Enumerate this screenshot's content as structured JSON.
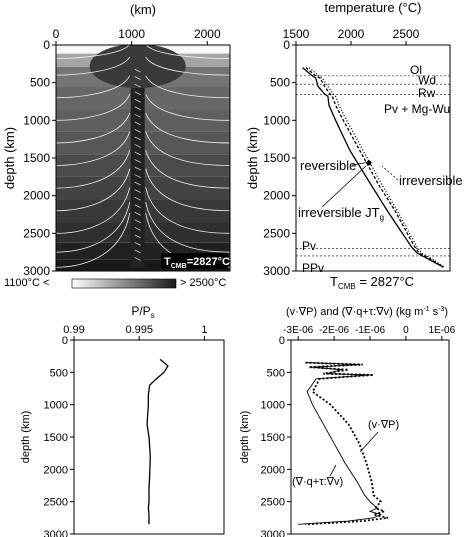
{
  "chart_data": [
    {
      "id": "a",
      "type": "heatmap",
      "title": "",
      "xlabel": "(km)",
      "ylabel": "depth (km)",
      "xlim": [
        0,
        2300
      ],
      "ylim": [
        3000,
        0
      ],
      "xticks": [
        0,
        1000,
        2000
      ],
      "yticks": [
        0,
        500,
        1000,
        1500,
        2000,
        2500,
        3000
      ],
      "colorbar": {
        "low_label": "1100°C <",
        "high_label": "> 2500°C",
        "min": 1100,
        "max": 2500,
        "colors": [
          "#ffffff",
          "#1a1a1a"
        ]
      },
      "annotation": "T",
      "annotation_sub": "CMB",
      "annotation_value": "=2827°C",
      "plume_center_km": 1080,
      "layers": [
        {
          "depth": 50,
          "temperature": 1150
        },
        {
          "depth": 180,
          "temperature": 1650
        },
        {
          "depth": 400,
          "temperature": 1950
        },
        {
          "depth": 700,
          "temperature": 2030
        },
        {
          "depth": 1000,
          "temperature": 2080
        },
        {
          "depth": 1300,
          "temperature": 2130
        },
        {
          "depth": 1600,
          "temperature": 2200
        },
        {
          "depth": 1900,
          "temperature": 2250
        },
        {
          "depth": 2200,
          "temperature": 2310
        },
        {
          "depth": 2500,
          "temperature": 2370
        },
        {
          "depth": 2750,
          "temperature": 2450
        },
        {
          "depth": 2950,
          "temperature": 2600
        }
      ]
    },
    {
      "id": "b",
      "type": "line",
      "title": "",
      "xlabel": "temperature (°C)",
      "ylabel": "depth (km)",
      "xlim": [
        1500,
        2900
      ],
      "ylim": [
        3000,
        0
      ],
      "xticks": [
        1500,
        2000,
        2500
      ],
      "yticks": [
        0,
        500,
        1000,
        1500,
        2000,
        2500,
        3000
      ],
      "boundaries": [
        410,
        520,
        660,
        2700,
        2800
      ],
      "labels": {
        "ol": "Ol",
        "wd": "Wd",
        "rw": "Rw",
        "pv_mgwu": "Pv + Mg-Wu",
        "pv": "Pv",
        "ppv": "PPv",
        "tcmb": "T",
        "tcmb_sub": "CMB",
        "tcmb_value": " = 2827°C",
        "reversible": "reversible",
        "irreversible": "irreversible",
        "irreversible_jt": "irreversible JT",
        "jt_sub": "g"
      },
      "series": [
        {
          "name": "reversible",
          "x": [
            1560,
            1640,
            1680,
            1700,
            1760,
            1790,
            1800,
            1860,
            1990,
            2180,
            2330,
            2490,
            2550,
            2600,
            2700,
            2840
          ],
          "y": [
            300,
            400,
            440,
            550,
            650,
            680,
            800,
            1000,
            1400,
            1850,
            2200,
            2550,
            2680,
            2760,
            2840,
            2950
          ]
        },
        {
          "name": "irreversible",
          "x": [
            1590,
            1670,
            1720,
            1760,
            1810,
            1830,
            1860,
            1930,
            2080,
            2250,
            2400,
            2530,
            2580,
            2620,
            2720,
            2840
          ],
          "y": [
            300,
            400,
            440,
            550,
            650,
            680,
            800,
            1000,
            1400,
            1850,
            2200,
            2550,
            2680,
            2760,
            2840,
            2950
          ]
        },
        {
          "name": "irreversible JTg",
          "x": [
            1620,
            1700,
            1740,
            1790,
            1840,
            1860,
            1890,
            1960,
            2110,
            2280,
            2420,
            2550,
            2600,
            2640,
            2740,
            2850
          ],
          "y": [
            300,
            400,
            440,
            550,
            650,
            680,
            800,
            1000,
            1400,
            1850,
            2200,
            2550,
            2680,
            2760,
            2840,
            2950
          ]
        }
      ]
    },
    {
      "id": "c",
      "type": "line",
      "title": "",
      "xlabel": "P/P",
      "xlabel_sub": "s",
      "ylabel": "depth (km)",
      "xlim": [
        0.99,
        1.0015
      ],
      "ylim": [
        3000,
        0
      ],
      "xticks": [
        0.99,
        0.995,
        1
      ],
      "xticklabels": [
        "0.99",
        "0.995",
        "1"
      ],
      "yticks": [
        0,
        500,
        1000,
        1500,
        2000,
        2500,
        3000
      ],
      "series": [
        {
          "name": "",
          "x": [
            0.9966,
            0.9972,
            0.9969,
            0.99655,
            0.9962,
            0.9958,
            0.9957,
            0.9957,
            0.9956,
            0.99575,
            0.99585,
            0.9958,
            0.99575,
            0.99575,
            0.9957,
            0.99575,
            0.99575
          ],
          "y": [
            300,
            400,
            500,
            560,
            620,
            700,
            850,
            1000,
            1300,
            1500,
            1800,
            2100,
            2300,
            2500,
            2600,
            2700,
            2850
          ]
        }
      ]
    },
    {
      "id": "d",
      "type": "line",
      "title": "",
      "xlabel": "(v·∇P) and (∇·q+τ:∇v) (kg m",
      "xlabel_tail_1": " s",
      "xlabel_tail_2": ")",
      "xlabel_exp_1": "-1",
      "xlabel_exp_2": "-3",
      "ylabel": "depth (km)",
      "xlim": [
        -3.2e-06,
        1.2e-06
      ],
      "ylim": [
        3000,
        0
      ],
      "xticks": [
        -3e-06,
        -2e-06,
        -1e-06,
        0,
        1e-06
      ],
      "xticklabels": [
        "-3E-06",
        "-2E-06",
        "-1E-06",
        "0",
        "1E-06"
      ],
      "yticks": [
        0,
        500,
        1000,
        1500,
        2000,
        2500,
        3000
      ],
      "annotations": [
        "(v·∇P)",
        "(∇·q+τ:∇v)"
      ],
      "series": [
        {
          "name": "(v·∇P)",
          "x": [
            -2.8e-06,
            -1.2e-06,
            -2.7e-06,
            -1.6e-06,
            -2.3e-06,
            -9e-07,
            -2.4e-06,
            -2.6e-06,
            -2.1e-06,
            -1.6e-06,
            -1.3e-06,
            -1.1e-06,
            -9.5e-07,
            -9e-07,
            -7e-07,
            -8.5e-07,
            -6e-07,
            -9e-07,
            -5e-07,
            -1.2e-06,
            -2.8e-06
          ],
          "y": [
            350,
            380,
            420,
            460,
            520,
            540,
            600,
            800,
            1000,
            1300,
            1600,
            1900,
            2200,
            2400,
            2500,
            2600,
            2650,
            2700,
            2750,
            2800,
            2850
          ]
        },
        {
          "name": "(∇·q+τ:∇v)",
          "x": [
            -2.75e-06,
            -1.3e-06,
            -2.6e-06,
            -1.8e-06,
            -2.2e-06,
            -1e-06,
            -2.5e-06,
            -2.75e-06,
            -2.6e-06,
            -2.3e-06,
            -2e-06,
            -1.7e-06,
            -1.35e-06,
            -1.15e-06,
            -1e-06,
            -8e-07,
            -1e-06,
            -7e-07,
            -9e-07,
            -1.6e-06,
            -3e-06
          ],
          "y": [
            350,
            380,
            420,
            460,
            520,
            540,
            600,
            800,
            1000,
            1300,
            1600,
            1900,
            2200,
            2400,
            2500,
            2600,
            2650,
            2700,
            2750,
            2800,
            2850
          ]
        }
      ]
    }
  ]
}
